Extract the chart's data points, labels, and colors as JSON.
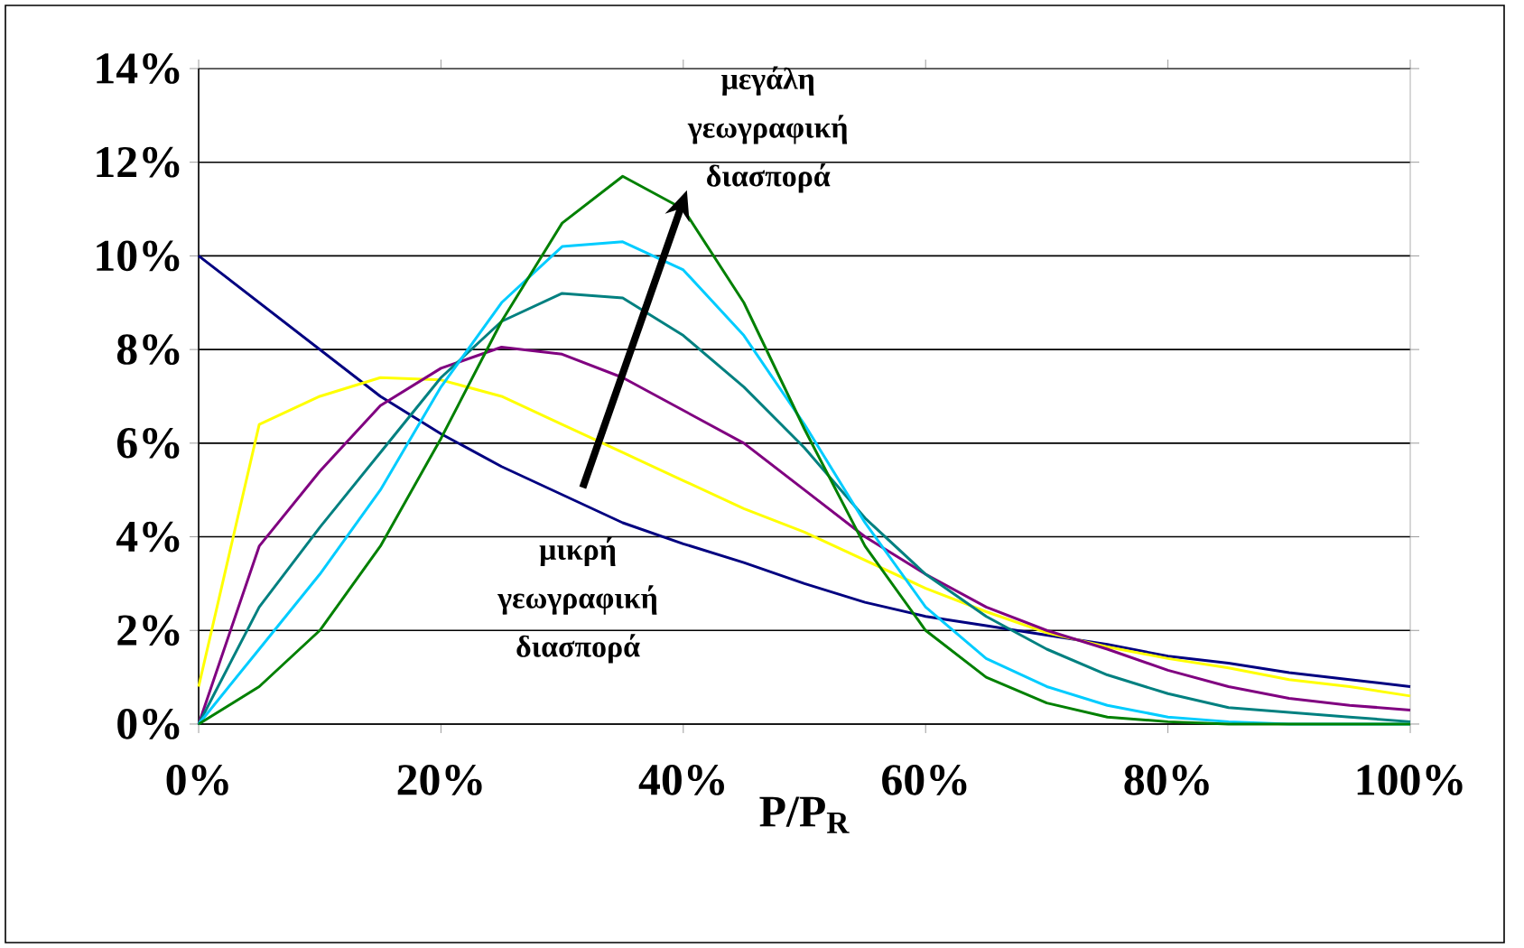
{
  "chart_data": {
    "type": "line",
    "xlabel": "P/P$_{R}$",
    "x": [
      0,
      5,
      10,
      15,
      20,
      25,
      30,
      35,
      40,
      45,
      50,
      55,
      60,
      65,
      70,
      75,
      80,
      85,
      90,
      95,
      100
    ],
    "series": [
      {
        "color": "#000080",
        "values": [
          10,
          9.0,
          8.0,
          7.0,
          6.2,
          5.5,
          4.9,
          4.3,
          3.85,
          3.45,
          3.0,
          2.6,
          2.3,
          2.1,
          1.9,
          1.7,
          1.45,
          1.3,
          1.1,
          0.95,
          0.8
        ]
      },
      {
        "color": "#ffff00",
        "values": [
          0.8,
          6.4,
          7.0,
          7.4,
          7.35,
          7.0,
          6.4,
          5.8,
          5.2,
          4.6,
          4.1,
          3.5,
          2.9,
          2.4,
          1.95,
          1.65,
          1.4,
          1.2,
          0.95,
          0.8,
          0.6
        ]
      },
      {
        "color": "#800080",
        "values": [
          0,
          3.8,
          5.4,
          6.8,
          7.6,
          8.05,
          7.9,
          7.4,
          6.7,
          6.0,
          5.0,
          4.0,
          3.2,
          2.5,
          2.0,
          1.6,
          1.15,
          0.8,
          0.55,
          0.4,
          0.3
        ]
      },
      {
        "color": "#008080",
        "values": [
          0,
          2.5,
          4.2,
          5.8,
          7.4,
          8.6,
          9.2,
          9.1,
          8.3,
          7.2,
          5.9,
          4.4,
          3.2,
          2.3,
          1.6,
          1.05,
          0.65,
          0.35,
          0.25,
          0.15,
          0.05
        ]
      },
      {
        "color": "#00ccff",
        "values": [
          0,
          1.6,
          3.2,
          5.0,
          7.2,
          9.0,
          10.2,
          10.3,
          9.7,
          8.3,
          6.4,
          4.3,
          2.5,
          1.4,
          0.8,
          0.4,
          0.15,
          0.05,
          0,
          0,
          0
        ]
      },
      {
        "color": "#008000",
        "values": [
          0,
          0.8,
          2.0,
          3.8,
          6.1,
          8.6,
          10.7,
          11.7,
          11.0,
          9.0,
          6.3,
          3.8,
          2.0,
          1.0,
          0.45,
          0.15,
          0.05,
          0,
          0,
          0,
          0
        ]
      }
    ],
    "xlim": [
      0,
      100
    ],
    "xticks": [
      {
        "value": 0,
        "label": "0%"
      },
      {
        "value": 20,
        "label": "20%"
      },
      {
        "value": 40,
        "label": "40%"
      },
      {
        "value": 60,
        "label": "60%"
      },
      {
        "value": 80,
        "label": "80%"
      },
      {
        "value": 100,
        "label": "100%"
      }
    ],
    "ylim": [
      0,
      14
    ],
    "yticks": [
      {
        "value": 0,
        "label": "0%"
      },
      {
        "value": 2,
        "label": "2%"
      },
      {
        "value": 4,
        "label": "4%"
      },
      {
        "value": 6,
        "label": "6%"
      },
      {
        "value": 8,
        "label": "8%"
      },
      {
        "value": 10,
        "label": "10%"
      },
      {
        "value": 12,
        "label": "12%"
      },
      {
        "value": 14,
        "label": "14%"
      }
    ],
    "grid": "y",
    "marker": "none",
    "line_style": "solid",
    "annotations": [
      "μεγάλη γεωγραφική διασπορά",
      "μικρή γεωγραφική διασπορά"
    ]
  }
}
